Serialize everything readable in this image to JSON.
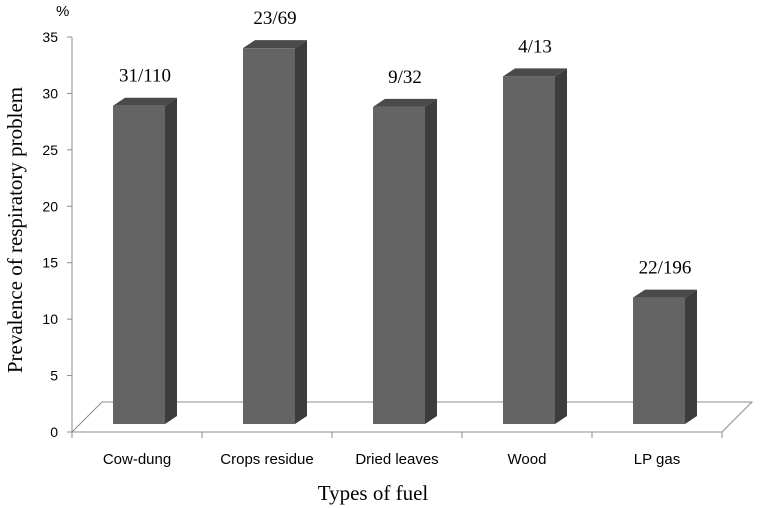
{
  "chart_data": {
    "type": "bar",
    "categories": [
      "Cow-dung",
      "Crops residue",
      "Dried leaves",
      "Wood",
      "LP gas"
    ],
    "values": [
      28.2,
      33.3,
      28.1,
      30.8,
      11.2
    ],
    "data_labels": [
      "31/110",
      "23/69",
      "9/32",
      "4/13",
      "22/196"
    ],
    "xlabel": "Types of fuel",
    "ylabel": "Prevalence of respiratory problem",
    "y_unit": "%",
    "ylim": [
      0,
      35
    ],
    "yticks": [
      0,
      5,
      10,
      15,
      20,
      25,
      30,
      35
    ],
    "grid": false,
    "legend": "none",
    "style": "3d",
    "colors": {
      "bar_front": "#646464",
      "bar_side": "#3c3c3c",
      "bar_top": "#4a4a4a",
      "axis": "#8c8c8c"
    }
  }
}
